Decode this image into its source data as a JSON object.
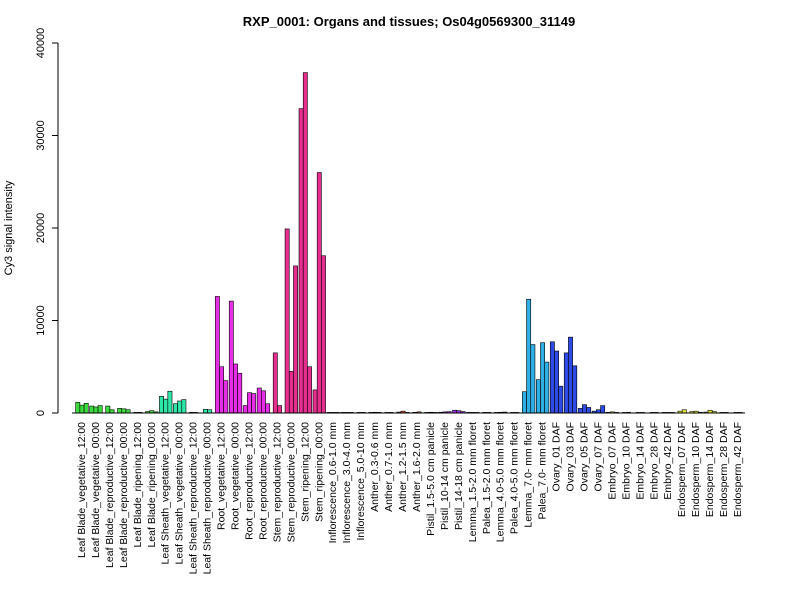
{
  "chart_data": {
    "type": "bar",
    "title": "RXP_0001: Organs and tissues; Os04g0569300_31149",
    "xlabel": "",
    "ylabel": "Cy3 signal intensity",
    "ylim": [
      0,
      40000
    ],
    "yticks": [
      0,
      10000,
      20000,
      30000,
      40000
    ],
    "grid": false,
    "groups": [
      {
        "label": "Leaf Blade_vegetative_12:00",
        "color": "#3ADB3A",
        "values": [
          1150,
          850,
          1050
        ]
      },
      {
        "label": "Leaf Blade_vegetative_00:00",
        "color": "#3ADB3A",
        "values": [
          750,
          650,
          800
        ]
      },
      {
        "label": "Leaf Blade_reproductive_12:00",
        "color": "#3ADB3A",
        "values": [
          750,
          350
        ]
      },
      {
        "label": "Leaf Blade_reproductive_00:00",
        "color": "#3ADB3A",
        "values": [
          500,
          450,
          350
        ]
      },
      {
        "label": "Leaf Blade_ripening_12:00",
        "color": "#3ADB3A",
        "values": [
          60,
          80
        ]
      },
      {
        "label": "Leaf Blade_ripening_00:00",
        "color": "#3ADB3A",
        "values": [
          150,
          250,
          120
        ]
      },
      {
        "label": "Leaf Sheath_vegetative_12:00",
        "color": "#2EE6A8",
        "values": [
          1800,
          1500,
          2350
        ]
      },
      {
        "label": "Leaf Sheath_vegetative_00:00",
        "color": "#2EE6A8",
        "values": [
          1000,
          1300,
          1450
        ]
      },
      {
        "label": "Leaf Sheath_reproductive_12:00",
        "color": "#2EE6A8",
        "values": [
          70,
          60
        ]
      },
      {
        "label": "Leaf Sheath_reproductive_00:00",
        "color": "#2EE6A8",
        "values": [
          400,
          350
        ]
      },
      {
        "label": "Root_vegetative_12:00",
        "color": "#E62EE6",
        "values": [
          12600,
          5000,
          3500
        ]
      },
      {
        "label": "Root_vegetative_00:00",
        "color": "#E62EE6",
        "values": [
          12100,
          5300,
          4300
        ]
      },
      {
        "label": "Root_reproductive_12:00",
        "color": "#E62EE6",
        "values": [
          800,
          2200,
          2100
        ]
      },
      {
        "label": "Root_reproductive_00:00",
        "color": "#E62EE6",
        "values": [
          2700,
          2400,
          1000
        ]
      },
      {
        "label": "Stem_reproductive_12:00",
        "color": "#E62E8F",
        "values": [
          6500,
          800
        ]
      },
      {
        "label": "Stem_reproductive_00:00",
        "color": "#E62E8F",
        "values": [
          19900,
          4500,
          15900
        ]
      },
      {
        "label": "Stem_ripening_12:00",
        "color": "#E62E8F",
        "values": [
          32900,
          36800,
          5000
        ]
      },
      {
        "label": "Stem_ripening_00:00",
        "color": "#E62E8F",
        "values": [
          2500,
          26000,
          17000
        ]
      },
      {
        "label": "Inflorescence_0.6-1.0 mm",
        "color": "#E62E5C",
        "values": [
          30,
          40,
          30
        ]
      },
      {
        "label": "Inflorescence_3.0-4.0 mm",
        "color": "#E6372E",
        "values": [
          30,
          30,
          40
        ]
      },
      {
        "label": "Inflorescence_5.0-10 mm",
        "color": "#E6372E",
        "values": [
          30,
          40
        ]
      },
      {
        "label": "Anther_0.3-0.6 mm",
        "color": "#E6552E",
        "values": [
          60,
          80,
          50
        ]
      },
      {
        "label": "Anther_0.7-1.0 mm",
        "color": "#E6552E",
        "values": [
          50,
          60
        ]
      },
      {
        "label": "Anther_1.2-1.5 mm",
        "color": "#E6552E",
        "values": [
          100,
          200,
          60
        ]
      },
      {
        "label": "Anther_1.6-2.0 mm",
        "color": "#E6552E",
        "values": [
          80,
          120
        ]
      },
      {
        "label": "Pistil_1.5-5.0 cm panicle",
        "color": "#9B2EE6",
        "values": [
          60,
          80,
          60
        ]
      },
      {
        "label": "Pistil_10-14 cm panicle",
        "color": "#9B2EE6",
        "values": [
          80,
          120,
          150
        ]
      },
      {
        "label": "Pistil_14-18 cm panicle",
        "color": "#9B2EE6",
        "values": [
          300,
          250,
          150
        ]
      },
      {
        "label": "Lemma_1.5-2.0 mm floret",
        "color": "#6B2EE6",
        "values": [
          60,
          50,
          60
        ]
      },
      {
        "label": "Palea_1.5-2.0 mm floret",
        "color": "#6B2EE6",
        "values": [
          50,
          60
        ]
      },
      {
        "label": "Lemma_4.0-5.0 mm floret",
        "color": "#4B2EE6",
        "values": [
          60,
          80,
          100
        ]
      },
      {
        "label": "Palea_4.0-5.0 mm floret",
        "color": "#4B2EE6",
        "values": [
          60,
          50
        ]
      },
      {
        "label": "Lemma_7.0- mm floret",
        "color": "#2EAFE6",
        "values": [
          2300,
          12300,
          7400
        ]
      },
      {
        "label": "Palea_7.0- mm floret",
        "color": "#2EAFE6",
        "values": [
          3600,
          7600,
          5500
        ]
      },
      {
        "label": "Ovary_01 DAF",
        "color": "#2E4BE6",
        "values": [
          7700,
          6700,
          2900
        ]
      },
      {
        "label": "Ovary_03 DAF",
        "color": "#2E4BE6",
        "values": [
          6500,
          8200,
          5100
        ]
      },
      {
        "label": "Ovary_05 DAF",
        "color": "#2E4BE6",
        "values": [
          500,
          900,
          600
        ]
      },
      {
        "label": "Ovary_07 DAF",
        "color": "#2E4BE6",
        "values": [
          200,
          350,
          800
        ]
      },
      {
        "label": "Embryo_07 DAF",
        "color": "#A8E62E",
        "values": [
          80,
          120,
          60
        ]
      },
      {
        "label": "Embryo_10 DAF",
        "color": "#A8E62E",
        "values": [
          60,
          80
        ]
      },
      {
        "label": "Embryo_14 DAF",
        "color": "#A8E62E",
        "values": [
          50,
          60
        ]
      },
      {
        "label": "Embryo_28 DAF",
        "color": "#A8E62E",
        "values": [
          40,
          50
        ]
      },
      {
        "label": "Embryo_42 DAF",
        "color": "#A8E62E",
        "values": [
          40,
          50,
          40
        ]
      },
      {
        "label": "Endosperm_07 DAF",
        "color": "#E6E62E",
        "values": [
          200,
          350
        ]
      },
      {
        "label": "Endosperm_10 DAF",
        "color": "#E6E62E",
        "values": [
          150,
          200,
          80
        ]
      },
      {
        "label": "Endosperm_14 DAF",
        "color": "#E6E62E",
        "values": [
          100,
          300,
          150
        ]
      },
      {
        "label": "Endosperm_28 DAF",
        "color": "#E6E62E",
        "values": [
          40,
          60
        ]
      },
      {
        "label": "Endosperm_42 DAF",
        "color": "#E6E62E",
        "values": [
          40,
          50
        ]
      }
    ]
  }
}
